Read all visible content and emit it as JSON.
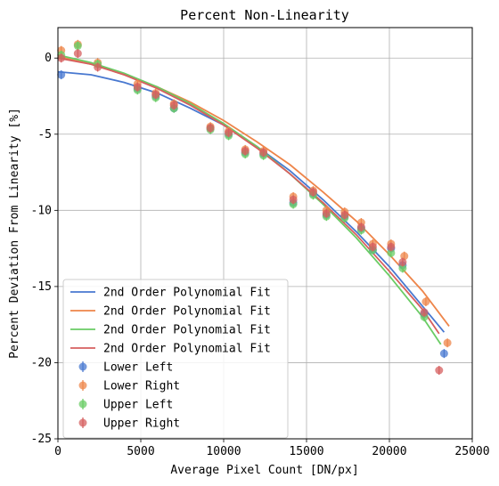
{
  "chart_data": {
    "type": "scatter",
    "title": "Percent Non-Linearity",
    "xlabel": "Average Pixel Count [DN/px]",
    "ylabel": "Percent Deviation From Linearity [%]",
    "xlim": [
      0,
      25000
    ],
    "ylim": [
      -25,
      2
    ],
    "x_ticks": [
      "0",
      "5000",
      "10000",
      "15000",
      "20000",
      "25000"
    ],
    "x_tick_values": [
      0,
      5000,
      10000,
      15000,
      20000,
      25000
    ],
    "y_ticks": [
      "0",
      "-5",
      "-10",
      "-15",
      "-20",
      "-25"
    ],
    "y_tick_values": [
      0,
      -5,
      -10,
      -15,
      -20,
      -25
    ],
    "grid": true,
    "legend_position": "lower-left",
    "fits": [
      {
        "name": "2nd Order Polynomial Fit",
        "color": "#4878d0",
        "x": [
          0,
          2000,
          4000,
          6000,
          8000,
          10000,
          12000,
          14000,
          16000,
          18000,
          20000,
          22000,
          23300
        ],
        "y": [
          -0.9,
          -1.1,
          -1.6,
          -2.3,
          -3.3,
          -4.4,
          -5.8,
          -7.4,
          -9.3,
          -11.4,
          -13.7,
          -16.3,
          -18.0
        ]
      },
      {
        "name": "2nd Order Polynomial Fit",
        "color": "#ee854a",
        "x": [
          0,
          2000,
          4000,
          6000,
          8000,
          10000,
          12000,
          14000,
          16000,
          18000,
          20000,
          22000,
          23600
        ],
        "y": [
          0.1,
          -0.4,
          -1.1,
          -1.9,
          -2.9,
          -4.1,
          -5.5,
          -7.0,
          -8.8,
          -10.7,
          -12.9,
          -15.3,
          -17.6
        ]
      },
      {
        "name": "2nd Order Polynomial Fit",
        "color": "#6acc64",
        "x": [
          0,
          2000,
          4000,
          6000,
          8000,
          10000,
          12000,
          14000,
          16000,
          18000,
          20000,
          22000,
          23100
        ],
        "y": [
          0.2,
          -0.3,
          -1.0,
          -1.9,
          -3.0,
          -4.3,
          -5.8,
          -7.6,
          -9.6,
          -11.8,
          -14.3,
          -17.0,
          -18.8
        ]
      },
      {
        "name": "2nd Order Polynomial Fit",
        "color": "#d65f5f",
        "x": [
          0,
          2000,
          4000,
          6000,
          8000,
          10000,
          12000,
          14000,
          16000,
          18000,
          20000,
          22000,
          23000
        ],
        "y": [
          0.0,
          -0.4,
          -1.1,
          -2.0,
          -3.1,
          -4.4,
          -5.9,
          -7.6,
          -9.5,
          -11.6,
          -14.0,
          -16.5,
          -18.1
        ]
      }
    ],
    "series": [
      {
        "name": "Lower Left",
        "color": "#4878d0",
        "x": [
          200,
          4800,
          5900,
          7000,
          9200,
          10300,
          11300,
          12400,
          14200,
          15400,
          16200,
          17300,
          18300,
          19000,
          20100,
          20800,
          22100,
          23300
        ],
        "y": [
          -1.1,
          -2.0,
          -2.5,
          -3.3,
          -4.6,
          -5.0,
          -6.2,
          -6.3,
          -9.5,
          -8.9,
          -10.3,
          -10.4,
          -11.2,
          -12.6,
          -12.5,
          -13.6,
          -16.8,
          -19.4
        ]
      },
      {
        "name": "Lower Right",
        "color": "#ee854a",
        "x": [
          200,
          1200,
          2400,
          4800,
          5900,
          7000,
          9200,
          10300,
          11300,
          12400,
          14200,
          15400,
          16200,
          17300,
          18300,
          19000,
          20100,
          20900,
          22200,
          23500
        ],
        "y": [
          0.5,
          0.9,
          -0.3,
          -1.7,
          -2.3,
          -3.0,
          -4.5,
          -4.8,
          -6.0,
          -6.1,
          -9.1,
          -8.7,
          -10.0,
          -10.1,
          -10.8,
          -12.2,
          -12.2,
          -13.0,
          -16.0,
          -18.7
        ]
      },
      {
        "name": "Upper Left",
        "color": "#6acc64",
        "x": [
          200,
          1200,
          2400,
          4800,
          5900,
          7000,
          9200,
          10300,
          11300,
          12400,
          14200,
          15400,
          16200,
          17300,
          18300,
          19000,
          20100,
          20800,
          22100
        ],
        "y": [
          0.2,
          0.8,
          -0.4,
          -2.1,
          -2.6,
          -3.3,
          -4.7,
          -5.1,
          -6.3,
          -6.4,
          -9.6,
          -9.0,
          -10.4,
          -10.5,
          -11.3,
          -12.6,
          -12.8,
          -13.8,
          -17.0
        ]
      },
      {
        "name": "Upper Right",
        "color": "#d65f5f",
        "x": [
          200,
          1200,
          2400,
          4800,
          5900,
          7000,
          9200,
          10300,
          11300,
          12400,
          14200,
          15400,
          16200,
          17300,
          18300,
          19000,
          20100,
          20800,
          22100,
          23000
        ],
        "y": [
          0.0,
          0.3,
          -0.6,
          -1.9,
          -2.4,
          -3.1,
          -4.6,
          -4.9,
          -6.1,
          -6.2,
          -9.3,
          -8.8,
          -10.2,
          -10.3,
          -11.1,
          -12.4,
          -12.4,
          -13.4,
          -16.7,
          -20.5
        ]
      }
    ]
  }
}
